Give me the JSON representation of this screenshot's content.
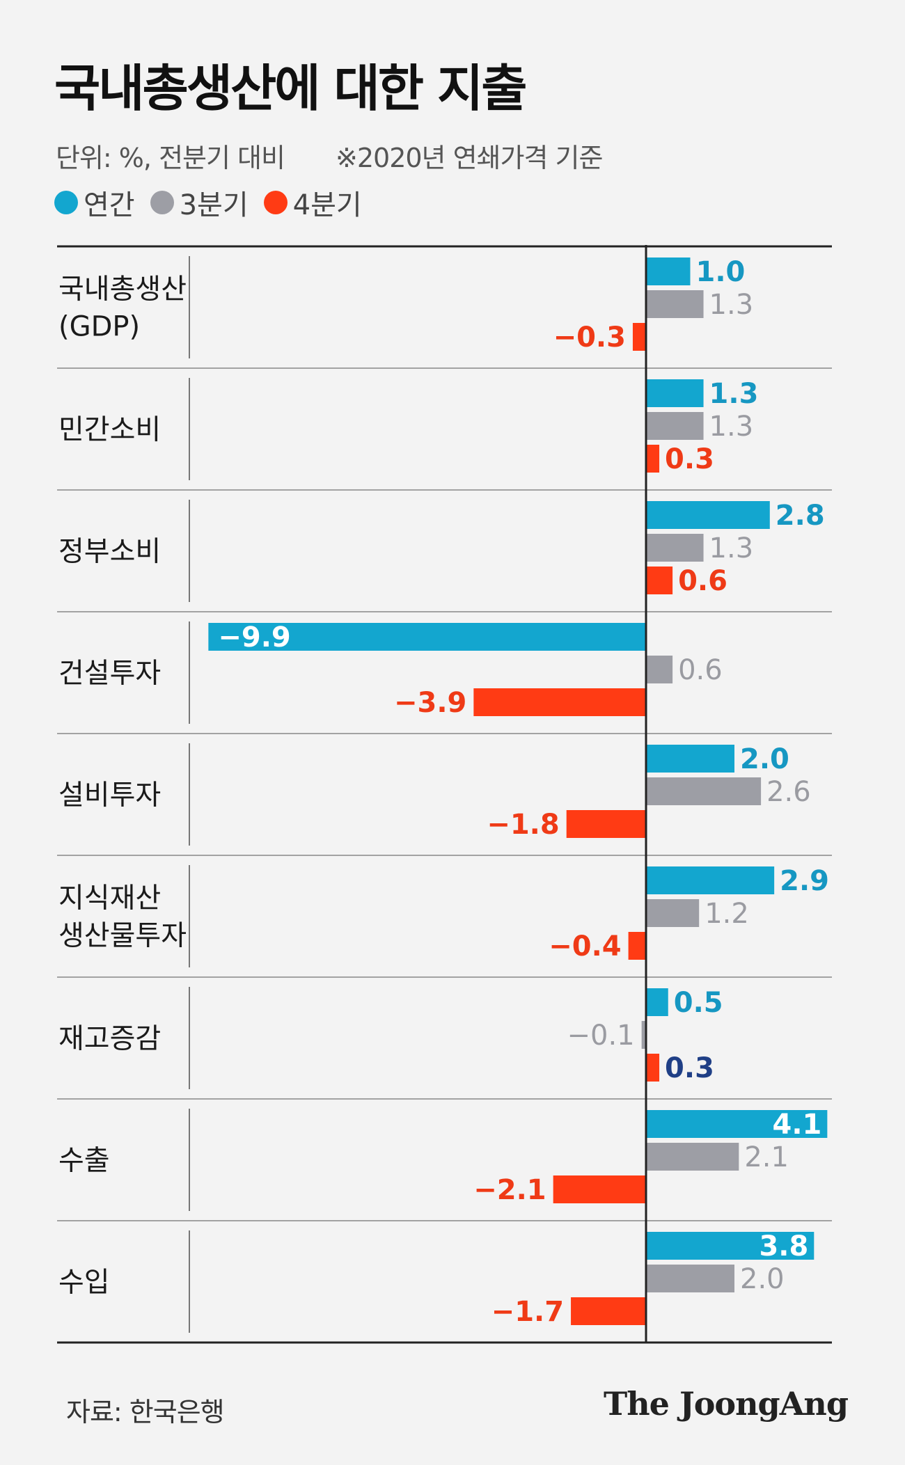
{
  "title": "국내총생산에 대한 지출",
  "unit_text": "단위: %, 전분기 대비",
  "note_text": "※2020년 연쇄가격 기준",
  "source_text": "자료: 한국은행",
  "brand_text": "The JoongAng",
  "colors": {
    "annual": "#13a6cf",
    "q3": "#9d9ea5",
    "q4": "#ff3b14",
    "q4_label": "#ef3a16",
    "annual_label": "#1697c2",
    "q3_label": "#9a9ba1",
    "alt_label": "#1f3f86"
  },
  "chart_data": {
    "type": "bar",
    "orientation": "horizontal",
    "title": "국내총생산에 대한 지출",
    "unit": "%, 전분기 대비",
    "categories": [
      [
        "국내총생산",
        "(GDP)"
      ],
      [
        "민간소비"
      ],
      [
        "정부소비"
      ],
      [
        "건설투자"
      ],
      [
        "설비투자"
      ],
      [
        "지식재산",
        "생산물투자"
      ],
      [
        "재고증감"
      ],
      [
        "수출"
      ],
      [
        "수입"
      ]
    ],
    "series": [
      {
        "name": "연간",
        "key": "annual",
        "values": [
          1.0,
          1.3,
          2.8,
          -9.9,
          2.0,
          2.9,
          0.5,
          4.1,
          3.8
        ],
        "labels": [
          "1.0",
          "1.3",
          "2.8",
          "−9.9",
          "2.0",
          "2.9",
          "0.5",
          "4.1",
          "3.8"
        ]
      },
      {
        "name": "3분기",
        "key": "q3",
        "values": [
          1.3,
          1.3,
          1.3,
          0.6,
          2.6,
          1.2,
          -0.1,
          2.1,
          2.0
        ],
        "labels": [
          "1.3",
          "1.3",
          "1.3",
          "0.6",
          "2.6",
          "1.2",
          "−0.1",
          "2.1",
          "2.0"
        ]
      },
      {
        "name": "4분기",
        "key": "q4",
        "values": [
          -0.3,
          0.3,
          0.6,
          -3.9,
          -1.8,
          -0.4,
          0.3,
          -2.1,
          -1.7
        ],
        "labels": [
          "−0.3",
          "0.3",
          "0.6",
          "−3.9",
          "−1.8",
          "−0.4",
          "0.3",
          "−2.1",
          "−1.7"
        ]
      }
    ],
    "legend_position": "top-left",
    "xlim": [
      -9.9,
      4.1
    ],
    "grid": false
  }
}
